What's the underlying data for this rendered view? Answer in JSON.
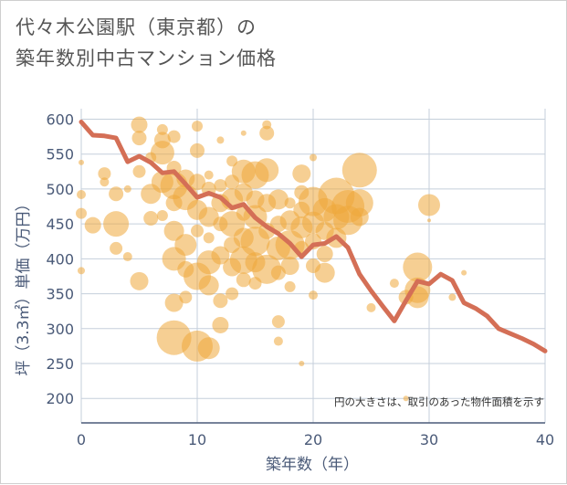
{
  "title_line1": "代々木公園駅（東京都）の",
  "title_line2": "築年数別中古マンション価格",
  "chart_data": {
    "type": "scatter",
    "xlabel": "築年数（年）",
    "ylabel": "坪（3.3㎡）単価（万円）",
    "xlim": [
      0,
      40
    ],
    "ylim": [
      165,
      615
    ],
    "xticks": [
      "0",
      "10",
      "20",
      "30",
      "40"
    ],
    "yticks": [
      "200",
      "250",
      "300",
      "350",
      "400",
      "450",
      "500",
      "550",
      "600"
    ],
    "grid": true,
    "note": "円の大きさは、取引のあった物件面積を示す",
    "colors": {
      "bubble": "#eea83a",
      "line": "#d46f56",
      "grid": "#c5cfdb",
      "axis": "#4a5a78"
    },
    "series": [
      {
        "kind": "line",
        "x": [
          0,
          1,
          2,
          3,
          4,
          5,
          6,
          7,
          8,
          9,
          10,
          11,
          12,
          13,
          14,
          15,
          16,
          17,
          18,
          19,
          20,
          21,
          22,
          23,
          24,
          25,
          26,
          27,
          28,
          29,
          30,
          31,
          32,
          33,
          34,
          35,
          36,
          37,
          38,
          39,
          40
        ],
        "y": [
          596,
          577,
          576,
          573,
          539,
          547,
          538,
          523,
          525,
          507,
          488,
          494,
          488,
          473,
          478,
          459,
          446,
          436,
          422,
          403,
          420,
          422,
          432,
          416,
          378,
          354,
          332,
          311,
          340,
          368,
          364,
          378,
          369,
          337,
          329,
          318,
          300,
          293,
          286,
          278,
          268
        ]
      },
      {
        "kind": "bubble",
        "points": [
          [
            0,
            538,
            3
          ],
          [
            0,
            492,
            5
          ],
          [
            0,
            465,
            6
          ],
          [
            0,
            383,
            4
          ],
          [
            1,
            448,
            9
          ],
          [
            2,
            522,
            7
          ],
          [
            2,
            510,
            5
          ],
          [
            3,
            493,
            8
          ],
          [
            3,
            450,
            14
          ],
          [
            3,
            415,
            7
          ],
          [
            4,
            403,
            5
          ],
          [
            4,
            500,
            4
          ],
          [
            5,
            592,
            9
          ],
          [
            5,
            573,
            8
          ],
          [
            5,
            525,
            7
          ],
          [
            5,
            368,
            10
          ],
          [
            6,
            545,
            6
          ],
          [
            6,
            493,
            11
          ],
          [
            6,
            458,
            8
          ],
          [
            7,
            585,
            6
          ],
          [
            7,
            570,
            9
          ],
          [
            7,
            552,
            13
          ],
          [
            7,
            510,
            12
          ],
          [
            7,
            462,
            6
          ],
          [
            8,
            575,
            7
          ],
          [
            8,
            530,
            8
          ],
          [
            8,
            505,
            15
          ],
          [
            8,
            480,
            9
          ],
          [
            8,
            440,
            11
          ],
          [
            8,
            400,
            13
          ],
          [
            8,
            337,
            10
          ],
          [
            8,
            287,
            19
          ],
          [
            9,
            515,
            10
          ],
          [
            9,
            488,
            14
          ],
          [
            9,
            420,
            12
          ],
          [
            9,
            385,
            9
          ],
          [
            9,
            345,
            7
          ],
          [
            10,
            590,
            6
          ],
          [
            10,
            555,
            8
          ],
          [
            10,
            510,
            9
          ],
          [
            10,
            470,
            11
          ],
          [
            10,
            440,
            7
          ],
          [
            10,
            375,
            15
          ],
          [
            10,
            275,
            17
          ],
          [
            11,
            272,
            12
          ],
          [
            11,
            520,
            5
          ],
          [
            11,
            500,
            8
          ],
          [
            11,
            460,
            11
          ],
          [
            11,
            430,
            6
          ],
          [
            11,
            395,
            13
          ],
          [
            11,
            362,
            11
          ],
          [
            12,
            570,
            4
          ],
          [
            12,
            505,
            7
          ],
          [
            12,
            480,
            10
          ],
          [
            12,
            450,
            8
          ],
          [
            12,
            405,
            10
          ],
          [
            12,
            340,
            8
          ],
          [
            12,
            305,
            9
          ],
          [
            13,
            540,
            6
          ],
          [
            13,
            510,
            8
          ],
          [
            13,
            485,
            12
          ],
          [
            13,
            450,
            14
          ],
          [
            13,
            420,
            9
          ],
          [
            13,
            388,
            10
          ],
          [
            13,
            350,
            7
          ],
          [
            14,
            580,
            3
          ],
          [
            14,
            525,
            13
          ],
          [
            14,
            495,
            10
          ],
          [
            14,
            465,
            8
          ],
          [
            14,
            430,
            11
          ],
          [
            14,
            398,
            15
          ],
          [
            14,
            370,
            8
          ],
          [
            15,
            520,
            15
          ],
          [
            15,
            485,
            10
          ],
          [
            15,
            460,
            13
          ],
          [
            15,
            425,
            16
          ],
          [
            15,
            395,
            11
          ],
          [
            15,
            365,
            7
          ],
          [
            16,
            592,
            5
          ],
          [
            16,
            580,
            8
          ],
          [
            16,
            527,
            13
          ],
          [
            16,
            480,
            10
          ],
          [
            16,
            440,
            9
          ],
          [
            16,
            385,
            16
          ],
          [
            17,
            485,
            11
          ],
          [
            17,
            450,
            9
          ],
          [
            17,
            415,
            13
          ],
          [
            17,
            380,
            8
          ],
          [
            17,
            310,
            7
          ],
          [
            17,
            282,
            5
          ],
          [
            18,
            480,
            6
          ],
          [
            18,
            455,
            11
          ],
          [
            18,
            420,
            16
          ],
          [
            18,
            390,
            10
          ],
          [
            18,
            360,
            6
          ],
          [
            19,
            522,
            10
          ],
          [
            19,
            495,
            8
          ],
          [
            19,
            470,
            9
          ],
          [
            19,
            445,
            12
          ],
          [
            19,
            415,
            8
          ],
          [
            19,
            250,
            3
          ],
          [
            20,
            545,
            4
          ],
          [
            20,
            482,
            16
          ],
          [
            20,
            452,
            12
          ],
          [
            20,
            425,
            9
          ],
          [
            20,
            390,
            8
          ],
          [
            20,
            348,
            5
          ],
          [
            21,
            470,
            13
          ],
          [
            21,
            440,
            10
          ],
          [
            21,
            407,
            9
          ],
          [
            21,
            380,
            11
          ],
          [
            22,
            490,
            20
          ],
          [
            22,
            460,
            14
          ],
          [
            22,
            430,
            11
          ],
          [
            23,
            475,
            18
          ],
          [
            23,
            455,
            16
          ],
          [
            24,
            527,
            19
          ],
          [
            24,
            480,
            15
          ],
          [
            24,
            460,
            10
          ],
          [
            25,
            330,
            5
          ],
          [
            27,
            365,
            5
          ],
          [
            28,
            345,
            8
          ],
          [
            28,
            200,
            3
          ],
          [
            29,
            388,
            16
          ],
          [
            29,
            355,
            14
          ],
          [
            29,
            345,
            12
          ],
          [
            30,
            477,
            12
          ],
          [
            30,
            455,
            2
          ],
          [
            32,
            345,
            4
          ],
          [
            33,
            380,
            3
          ]
        ]
      }
    ]
  }
}
